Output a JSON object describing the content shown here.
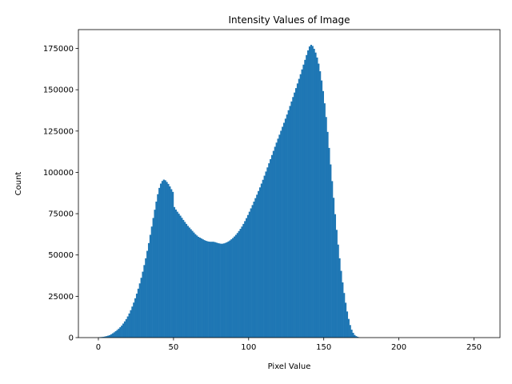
{
  "chart_data": {
    "type": "bar",
    "title": "Intensity Values of Image",
    "xlabel": "Pixel Value",
    "ylabel": "Count",
    "xlim": [
      -13.3,
      267.3
    ],
    "ylim": [
      0,
      186400
    ],
    "xticks": [
      0,
      50,
      100,
      150,
      200,
      250
    ],
    "xtick_labels": [
      "0",
      "50",
      "100",
      "150",
      "200",
      "250"
    ],
    "yticks": [
      0,
      25000,
      50000,
      75000,
      100000,
      125000,
      150000,
      175000
    ],
    "ytick_labels": [
      "0",
      "25000",
      "50000",
      "75000",
      "100000",
      "125000",
      "150000",
      "175000"
    ],
    "grid": false,
    "bar_color": "#1f77b4",
    "bins": {
      "start": 0,
      "width": 1,
      "values": [
        200,
        300,
        400,
        500,
        700,
        900,
        1200,
        1500,
        2000,
        2600,
        3200,
        3900,
        4600,
        5400,
        6300,
        7300,
        8500,
        9800,
        11200,
        12800,
        14600,
        16600,
        18800,
        21200,
        23800,
        26600,
        29600,
        32800,
        36200,
        39900,
        43900,
        48000,
        52500,
        57200,
        62200,
        67200,
        72400,
        77400,
        82300,
        86800,
        90600,
        93200,
        94800,
        95600,
        95200,
        94200,
        93000,
        91500,
        89800,
        88200,
        79000,
        77500,
        76200,
        75000,
        73800,
        72500,
        71200,
        70000,
        68800,
        67600,
        66600,
        65600,
        64600,
        63600,
        62600,
        61800,
        61000,
        60500,
        60000,
        59500,
        59000,
        58600,
        58300,
        58100,
        58000,
        58000,
        58000,
        57800,
        57500,
        57200,
        57000,
        56800,
        56800,
        57000,
        57300,
        57700,
        58200,
        58800,
        59500,
        60300,
        61200,
        62200,
        63300,
        64500,
        65800,
        67200,
        68800,
        70500,
        72300,
        74200,
        76200,
        78200,
        80200,
        82300,
        84400,
        86500,
        88700,
        90900,
        93200,
        95500,
        98000,
        100500,
        103000,
        105500,
        108000,
        110500,
        113000,
        115500,
        118000,
        120400,
        122800,
        125200,
        127600,
        130000,
        132500,
        135000,
        137600,
        140200,
        142900,
        145600,
        148300,
        151000,
        153800,
        156600,
        159400,
        162300,
        165200,
        168100,
        171000,
        173800,
        176200,
        177200,
        176500,
        174800,
        172500,
        169500,
        165800,
        161200,
        155600,
        149200,
        141800,
        133500,
        124500,
        114800,
        104800,
        94700,
        84600,
        74700,
        65200,
        56300,
        48000,
        40400,
        33400,
        27000,
        21100,
        15800,
        11300,
        7600,
        4800,
        2900,
        1600,
        900,
        500,
        200
      ]
    }
  }
}
